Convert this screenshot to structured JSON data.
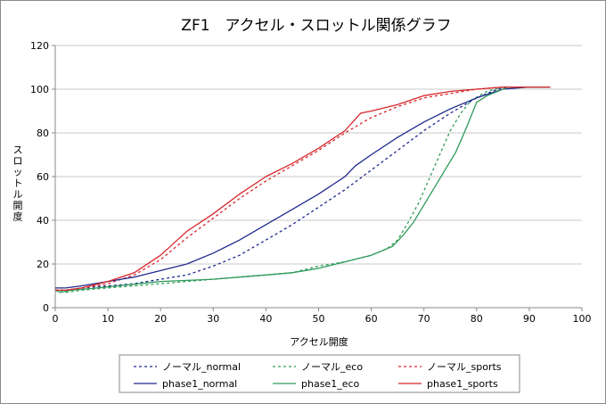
{
  "chart_data": {
    "type": "line",
    "title": "ZF1　アクセル・スロットル関係グラフ",
    "xlabel": "アクセル開度",
    "ylabel": "スロットル開度",
    "xlim": [
      0,
      100
    ],
    "ylim": [
      0,
      120
    ],
    "xticks": [
      0,
      10,
      20,
      30,
      40,
      50,
      60,
      70,
      80,
      90,
      100
    ],
    "yticks": [
      0,
      20,
      40,
      60,
      80,
      100,
      120
    ],
    "grid": "horizontal",
    "legend_position": "bottom",
    "series": [
      {
        "name": "ノーマル_normal",
        "color": "#1f2a8c",
        "style": "dotted",
        "points": [
          [
            0,
            8
          ],
          [
            2,
            8
          ],
          [
            5,
            9
          ],
          [
            10,
            10
          ],
          [
            15,
            11
          ],
          [
            20,
            13
          ],
          [
            25,
            15
          ],
          [
            30,
            19
          ],
          [
            35,
            24
          ],
          [
            40,
            31
          ],
          [
            45,
            38
          ],
          [
            50,
            46
          ],
          [
            55,
            54
          ],
          [
            60,
            63
          ],
          [
            65,
            72
          ],
          [
            70,
            81
          ],
          [
            75,
            89
          ],
          [
            80,
            96
          ],
          [
            84,
            100
          ],
          [
            86,
            101
          ],
          [
            94,
            101
          ]
        ]
      },
      {
        "name": "ノーマル_eco",
        "color": "#2e9a5a",
        "style": "dotted",
        "points": [
          [
            0,
            8
          ],
          [
            2,
            7
          ],
          [
            5,
            8
          ],
          [
            10,
            9
          ],
          [
            15,
            10
          ],
          [
            20,
            11
          ],
          [
            25,
            12
          ],
          [
            30,
            13
          ],
          [
            35,
            14
          ],
          [
            40,
            15
          ],
          [
            45,
            16
          ],
          [
            50,
            19
          ],
          [
            55,
            21
          ],
          [
            60,
            24
          ],
          [
            63,
            27
          ],
          [
            65,
            31
          ],
          [
            67,
            39
          ],
          [
            69,
            48
          ],
          [
            71,
            59
          ],
          [
            73,
            70
          ],
          [
            75,
            81
          ],
          [
            77,
            89
          ],
          [
            79,
            95
          ],
          [
            82,
            99
          ],
          [
            85,
            101
          ],
          [
            94,
            101
          ]
        ]
      },
      {
        "name": "ノーマル_sports",
        "color": "#d7262a",
        "style": "dotted",
        "points": [
          [
            0,
            8
          ],
          [
            2,
            8
          ],
          [
            5,
            9
          ],
          [
            10,
            11
          ],
          [
            15,
            15
          ],
          [
            20,
            22
          ],
          [
            25,
            32
          ],
          [
            30,
            41
          ],
          [
            35,
            50
          ],
          [
            40,
            58
          ],
          [
            45,
            65
          ],
          [
            50,
            72
          ],
          [
            55,
            80
          ],
          [
            60,
            87
          ],
          [
            65,
            92
          ],
          [
            70,
            96
          ],
          [
            75,
            98
          ],
          [
            80,
            100
          ],
          [
            85,
            101
          ],
          [
            94,
            101
          ]
        ]
      },
      {
        "name": "phase1_normal",
        "color": "#1f2a8c",
        "style": "solid",
        "points": [
          [
            0,
            9
          ],
          [
            2,
            9
          ],
          [
            5,
            10
          ],
          [
            10,
            12
          ],
          [
            15,
            14
          ],
          [
            20,
            17
          ],
          [
            25,
            20
          ],
          [
            30,
            25
          ],
          [
            35,
            31
          ],
          [
            40,
            38
          ],
          [
            45,
            45
          ],
          [
            50,
            52
          ],
          [
            55,
            60
          ],
          [
            57,
            65
          ],
          [
            60,
            70
          ],
          [
            65,
            78
          ],
          [
            70,
            85
          ],
          [
            75,
            91
          ],
          [
            80,
            96
          ],
          [
            85,
            100
          ],
          [
            90,
            101
          ],
          [
            94,
            101
          ]
        ]
      },
      {
        "name": "phase1_eco",
        "color": "#2e9a5a",
        "style": "solid",
        "points": [
          [
            0,
            8
          ],
          [
            1,
            7
          ],
          [
            3,
            8
          ],
          [
            8,
            9
          ],
          [
            12,
            10
          ],
          [
            20,
            12
          ],
          [
            30,
            13
          ],
          [
            35,
            14
          ],
          [
            40,
            15
          ],
          [
            45,
            16
          ],
          [
            50,
            18
          ],
          [
            55,
            21
          ],
          [
            60,
            24
          ],
          [
            64,
            28
          ],
          [
            66,
            33
          ],
          [
            68,
            39
          ],
          [
            70,
            47
          ],
          [
            72,
            55
          ],
          [
            74,
            63
          ],
          [
            76,
            71
          ],
          [
            78,
            82
          ],
          [
            80,
            94
          ],
          [
            82,
            97
          ],
          [
            86,
            101
          ],
          [
            94,
            101
          ]
        ]
      },
      {
        "name": "phase1_sports",
        "color": "#d7262a",
        "style": "solid",
        "points": [
          [
            0,
            8
          ],
          [
            2,
            8
          ],
          [
            5,
            9
          ],
          [
            10,
            12
          ],
          [
            15,
            16
          ],
          [
            20,
            24
          ],
          [
            25,
            35
          ],
          [
            30,
            43
          ],
          [
            35,
            52
          ],
          [
            40,
            60
          ],
          [
            45,
            66
          ],
          [
            50,
            73
          ],
          [
            55,
            81
          ],
          [
            58,
            89
          ],
          [
            60,
            90
          ],
          [
            65,
            93
          ],
          [
            70,
            97
          ],
          [
            75,
            99
          ],
          [
            80,
            100
          ],
          [
            85,
            101
          ],
          [
            94,
            101
          ]
        ]
      }
    ]
  }
}
